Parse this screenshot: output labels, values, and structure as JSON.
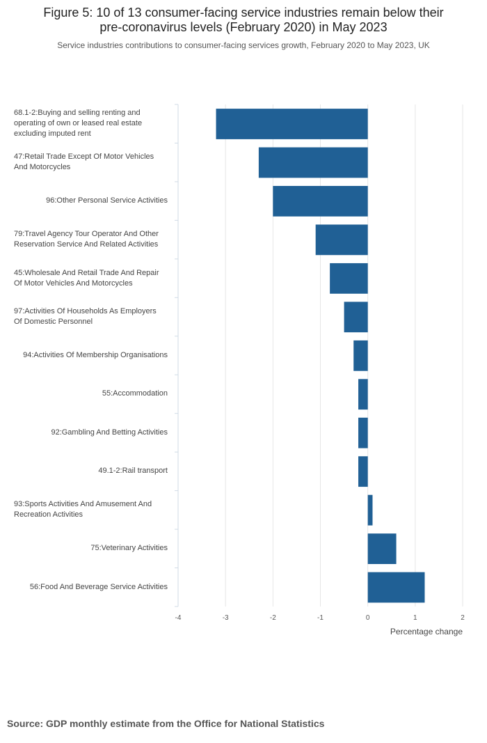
{
  "chart_data": {
    "type": "bar",
    "orientation": "horizontal",
    "title_lines": [
      "Figure 5: 10 of 13 consumer-facing service industries remain below their",
      "pre-coronavirus levels (February 2020) in May 2023"
    ],
    "subtitle": "Service industries contributions to consumer-facing services growth, February 2020 to May 2023, UK",
    "categories": [
      [
        "68.1-2:Buying and selling renting and",
        "operating of own or leased real estate",
        "excluding imputed rent"
      ],
      [
        "47:Retail Trade Except Of Motor Vehicles",
        "And Motorcycles"
      ],
      [
        "96:Other Personal Service Activities"
      ],
      [
        "79:Travel Agency Tour Operator And Other",
        "Reservation Service And Related Activities"
      ],
      [
        "45:Wholesale And Retail Trade And Repair",
        "Of Motor Vehicles And Motorcycles"
      ],
      [
        "97:Activities Of Households As Employers",
        "Of Domestic Personnel"
      ],
      [
        "94:Activities Of Membership Organisations"
      ],
      [
        "55:Accommodation"
      ],
      [
        "92:Gambling And Betting Activities"
      ],
      [
        "49.1-2:Rail transport"
      ],
      [
        "93:Sports Activities And Amusement And",
        "Recreation Activities"
      ],
      [
        "75:Veterinary Activities"
      ],
      [
        "56:Food And Beverage Service Activities"
      ]
    ],
    "values": [
      -3.2,
      -2.3,
      -2.0,
      -1.1,
      -0.8,
      -0.5,
      -0.3,
      -0.2,
      -0.2,
      -0.2,
      0.1,
      0.6,
      1.2
    ],
    "xlim": [
      -4,
      2
    ],
    "xticks": [
      "-4",
      "-3",
      "-2",
      "-1",
      "0",
      "1",
      "2"
    ],
    "xlabel": "Percentage change",
    "ylabel": "",
    "bar_color": "#206095",
    "grid": true
  },
  "source": "Source: GDP monthly estimate from the Office for National Statistics"
}
